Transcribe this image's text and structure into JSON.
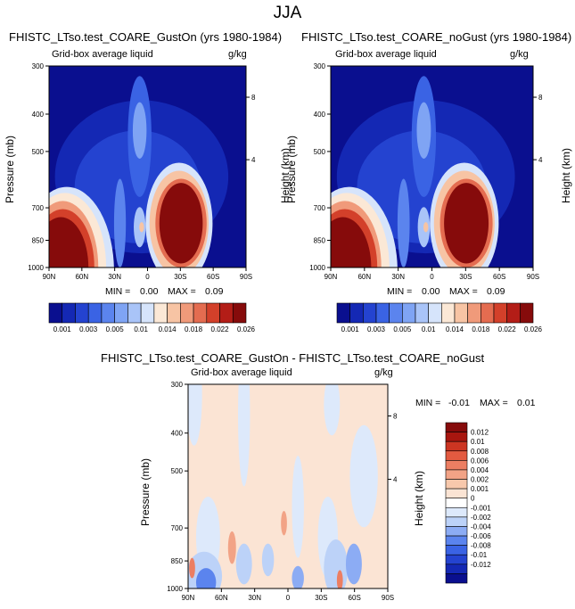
{
  "figure_title": "JJA",
  "colors": {
    "panel_palette": [
      "#0a0f8f",
      "#1428b4",
      "#2443d0",
      "#3a63e4",
      "#5b84ee",
      "#7fa4f4",
      "#a9c4f8",
      "#d6e4fb",
      "#fbe8d6",
      "#f7c4a4",
      "#f09a7a",
      "#e46c50",
      "#d3402a",
      "#b31d17",
      "#860b0b"
    ],
    "diff_palette": [
      "#0a0f8f",
      "#1428b4",
      "#2443d0",
      "#3a63e4",
      "#5b84ee",
      "#8cacf4",
      "#bcd2f8",
      "#dde9fb",
      "#ffffff",
      "#fbe4d4",
      "#f7c8ac",
      "#f2a386",
      "#ec7e62",
      "#e35a40",
      "#cc3522",
      "#a8160f",
      "#860b0b"
    ]
  },
  "chart_data": [
    {
      "type": "heatmap",
      "title": "FHISTC_LTso.test_COARE_GustOn (yrs 1980-1984)",
      "subtitle_left": "Grid-box average liquid",
      "subtitle_right": "g/kg",
      "ylabel": "Pressure (mb)",
      "y2label": "Height (km)",
      "x_ticks": [
        "90N",
        "60N",
        "30N",
        "0",
        "30S",
        "60S",
        "90S"
      ],
      "y_ticks": [
        "300",
        "400",
        "500",
        "700",
        "850",
        "1000"
      ],
      "y2_ticks": [
        "8",
        "4"
      ],
      "ylim": [
        1000,
        300
      ],
      "y_scale": "log",
      "min_label": "MIN =",
      "min_value": "0.00",
      "max_label": "MAX =",
      "max_value": "0.09",
      "colorbar_labels": [
        "0.001",
        "0.003",
        "0.005",
        "0.01",
        "0.014",
        "0.018",
        "0.022",
        "0.026"
      ],
      "colorbar_orientation": "horizontal"
    },
    {
      "type": "heatmap",
      "title": "FHISTC_LTso.test_COARE_noGust (yrs 1980-1984)",
      "subtitle_left": "Grid-box average liquid",
      "subtitle_right": "g/kg",
      "ylabel": "Pressure (mb)",
      "y2label": "Height (km)",
      "x_ticks": [
        "90N",
        "60N",
        "30N",
        "0",
        "30S",
        "60S",
        "90S"
      ],
      "y_ticks": [
        "300",
        "400",
        "500",
        "700",
        "850",
        "1000"
      ],
      "y2_ticks": [
        "8",
        "4"
      ],
      "ylim": [
        1000,
        300
      ],
      "y_scale": "log",
      "min_label": "MIN =",
      "min_value": "0.00",
      "max_label": "MAX =",
      "max_value": "0.09",
      "colorbar_labels": [
        "0.001",
        "0.003",
        "0.005",
        "0.01",
        "0.014",
        "0.018",
        "0.022",
        "0.026"
      ],
      "colorbar_orientation": "horizontal"
    },
    {
      "type": "heatmap",
      "title": "FHISTC_LTso.test_COARE_GustOn - FHISTC_LTso.test_COARE_noGust",
      "subtitle_left": "Grid-box average liquid",
      "subtitle_right": "g/kg",
      "ylabel": "Pressure (mb)",
      "y2label": "Height (km)",
      "x_ticks": [
        "90N",
        "60N",
        "30N",
        "0",
        "30S",
        "60S",
        "90S"
      ],
      "y_ticks": [
        "300",
        "400",
        "500",
        "700",
        "850",
        "1000"
      ],
      "y2_ticks": [
        "8",
        "4"
      ],
      "ylim": [
        1000,
        300
      ],
      "y_scale": "log",
      "min_label": "MIN =",
      "min_value": "-0.01",
      "max_label": "MAX =",
      "max_value": "0.01",
      "colorbar_labels": [
        "0.012",
        "0.01",
        "0.008",
        "0.006",
        "0.004",
        "0.002",
        "0.001",
        "0",
        "-0.001",
        "-0.002",
        "-0.004",
        "-0.006",
        "-0.008",
        "-0.01",
        "-0.012"
      ],
      "colorbar_orientation": "vertical"
    }
  ]
}
